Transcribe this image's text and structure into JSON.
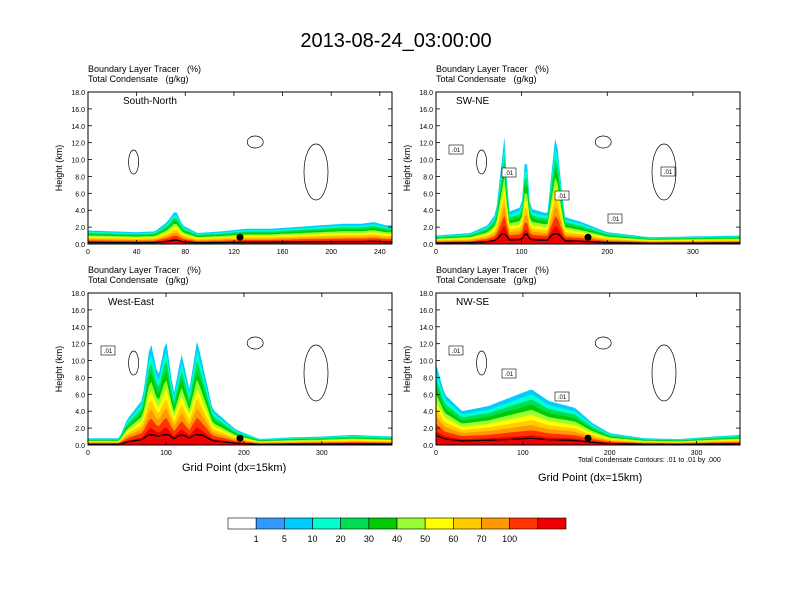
{
  "title": "2013-08-24_03:00:00",
  "var_label_1": "Boundary Layer Tracer   (%)",
  "var_label_2": "Total Condensate   (g/kg)",
  "footnote": "Total Condensate Contours: .01 to .01 by .000",
  "chart_data": [
    {
      "type": "heatmap",
      "panel_title": "South-North",
      "ylabel": "Height (km)",
      "xlabel": "",
      "xlim": [
        0,
        250
      ],
      "ylim": [
        0,
        18
      ],
      "xticks": [
        "0",
        "40",
        "80",
        "120",
        "160",
        "200",
        "240"
      ],
      "yticks": [
        "0.0",
        "2.0",
        "4.0",
        "6.0",
        "8.0",
        "10.0",
        "12.0",
        "14.0",
        "16.0",
        "18.0"
      ],
      "contour_labels": [],
      "boundary_layer_top_km": [
        [
          0,
          1.6
        ],
        [
          20,
          1.5
        ],
        [
          40,
          1.4
        ],
        [
          55,
          1.5
        ],
        [
          65,
          2.6
        ],
        [
          72,
          4.0
        ],
        [
          78,
          2.2
        ],
        [
          90,
          1.3
        ],
        [
          110,
          1.5
        ],
        [
          130,
          1.8
        ],
        [
          150,
          1.8
        ],
        [
          170,
          2.0
        ],
        [
          190,
          2.2
        ],
        [
          210,
          2.4
        ],
        [
          225,
          2.4
        ],
        [
          235,
          2.6
        ],
        [
          245,
          2.2
        ]
      ]
    },
    {
      "type": "heatmap",
      "panel_title": "SW-NE",
      "ylabel": "Height (km)",
      "xlabel": "",
      "xlim": [
        0,
        355
      ],
      "ylim": [
        0,
        18
      ],
      "xticks": [
        "0",
        "100",
        "200",
        "300"
      ],
      "yticks": [
        "0.0",
        "2.0",
        "4.0",
        "6.0",
        "8.0",
        "10.0",
        "12.0",
        "14.0",
        "16.0",
        "18.0"
      ],
      "contour_labels": [
        ".01",
        ".01",
        ".01",
        ".01",
        ".01"
      ],
      "boundary_layer_top_km": [
        [
          0,
          1.0
        ],
        [
          40,
          1.3
        ],
        [
          60,
          2.2
        ],
        [
          70,
          3.6
        ],
        [
          80,
          12.8
        ],
        [
          85,
          3.8
        ],
        [
          100,
          4.4
        ],
        [
          105,
          11.6
        ],
        [
          110,
          4.2
        ],
        [
          130,
          3.6
        ],
        [
          140,
          13.4
        ],
        [
          150,
          3.2
        ],
        [
          170,
          2.6
        ],
        [
          200,
          1.4
        ],
        [
          250,
          0.8
        ],
        [
          300,
          0.9
        ],
        [
          355,
          1.0
        ]
      ]
    },
    {
      "type": "heatmap",
      "panel_title": "West-East",
      "ylabel": "Height (km)",
      "xlabel": "Grid Point (dx=15km)",
      "xlim": [
        0,
        390
      ],
      "ylim": [
        0,
        18
      ],
      "xticks": [
        "0",
        "100",
        "200",
        "300"
      ],
      "yticks": [
        "0.0",
        "2.0",
        "4.0",
        "6.0",
        "8.0",
        "10.0",
        "12.0",
        "14.0",
        "16.0",
        "18.0"
      ],
      "contour_labels": [
        ".01"
      ],
      "boundary_layer_top_km": [
        [
          0,
          0.8
        ],
        [
          40,
          0.8
        ],
        [
          50,
          3.0
        ],
        [
          70,
          5.4
        ],
        [
          80,
          12.4
        ],
        [
          90,
          8.0
        ],
        [
          100,
          12.6
        ],
        [
          110,
          6.0
        ],
        [
          120,
          10.8
        ],
        [
          130,
          6.6
        ],
        [
          140,
          12.4
        ],
        [
          160,
          4.2
        ],
        [
          190,
          1.8
        ],
        [
          220,
          0.7
        ],
        [
          260,
          0.9
        ],
        [
          300,
          1.0
        ],
        [
          340,
          1.2
        ],
        [
          390,
          1.0
        ]
      ]
    },
    {
      "type": "heatmap",
      "panel_title": "NW-SE",
      "ylabel": "Height (km)",
      "xlabel": "Grid Point (dx=15km)",
      "xlim": [
        0,
        350
      ],
      "ylim": [
        0,
        18
      ],
      "xticks": [
        "0",
        "100",
        "200",
        "300"
      ],
      "yticks": [
        "0.0",
        "2.0",
        "4.0",
        "6.0",
        "8.0",
        "10.0",
        "12.0",
        "14.0",
        "16.0",
        "18.0"
      ],
      "contour_labels": [
        ".01",
        ".01",
        ".01"
      ],
      "boundary_layer_top_km": [
        [
          0,
          9.6
        ],
        [
          10,
          6.0
        ],
        [
          30,
          4.0
        ],
        [
          60,
          4.6
        ],
        [
          90,
          5.8
        ],
        [
          110,
          6.6
        ],
        [
          130,
          5.2
        ],
        [
          160,
          4.4
        ],
        [
          180,
          2.6
        ],
        [
          200,
          1.4
        ],
        [
          240,
          0.8
        ],
        [
          280,
          0.7
        ],
        [
          320,
          1.0
        ],
        [
          350,
          1.2
        ]
      ]
    }
  ],
  "colorbar": {
    "labels": [
      "1",
      "5",
      "10",
      "20",
      "30",
      "40",
      "50",
      "60",
      "70",
      "100"
    ],
    "colors": [
      "#ffffff",
      "#3399ff",
      "#00ccff",
      "#00ffcc",
      "#00dd55",
      "#00cc00",
      "#99ff33",
      "#ffff00",
      "#ffcc00",
      "#ff9900",
      "#ff3300",
      "#ee0000"
    ]
  }
}
